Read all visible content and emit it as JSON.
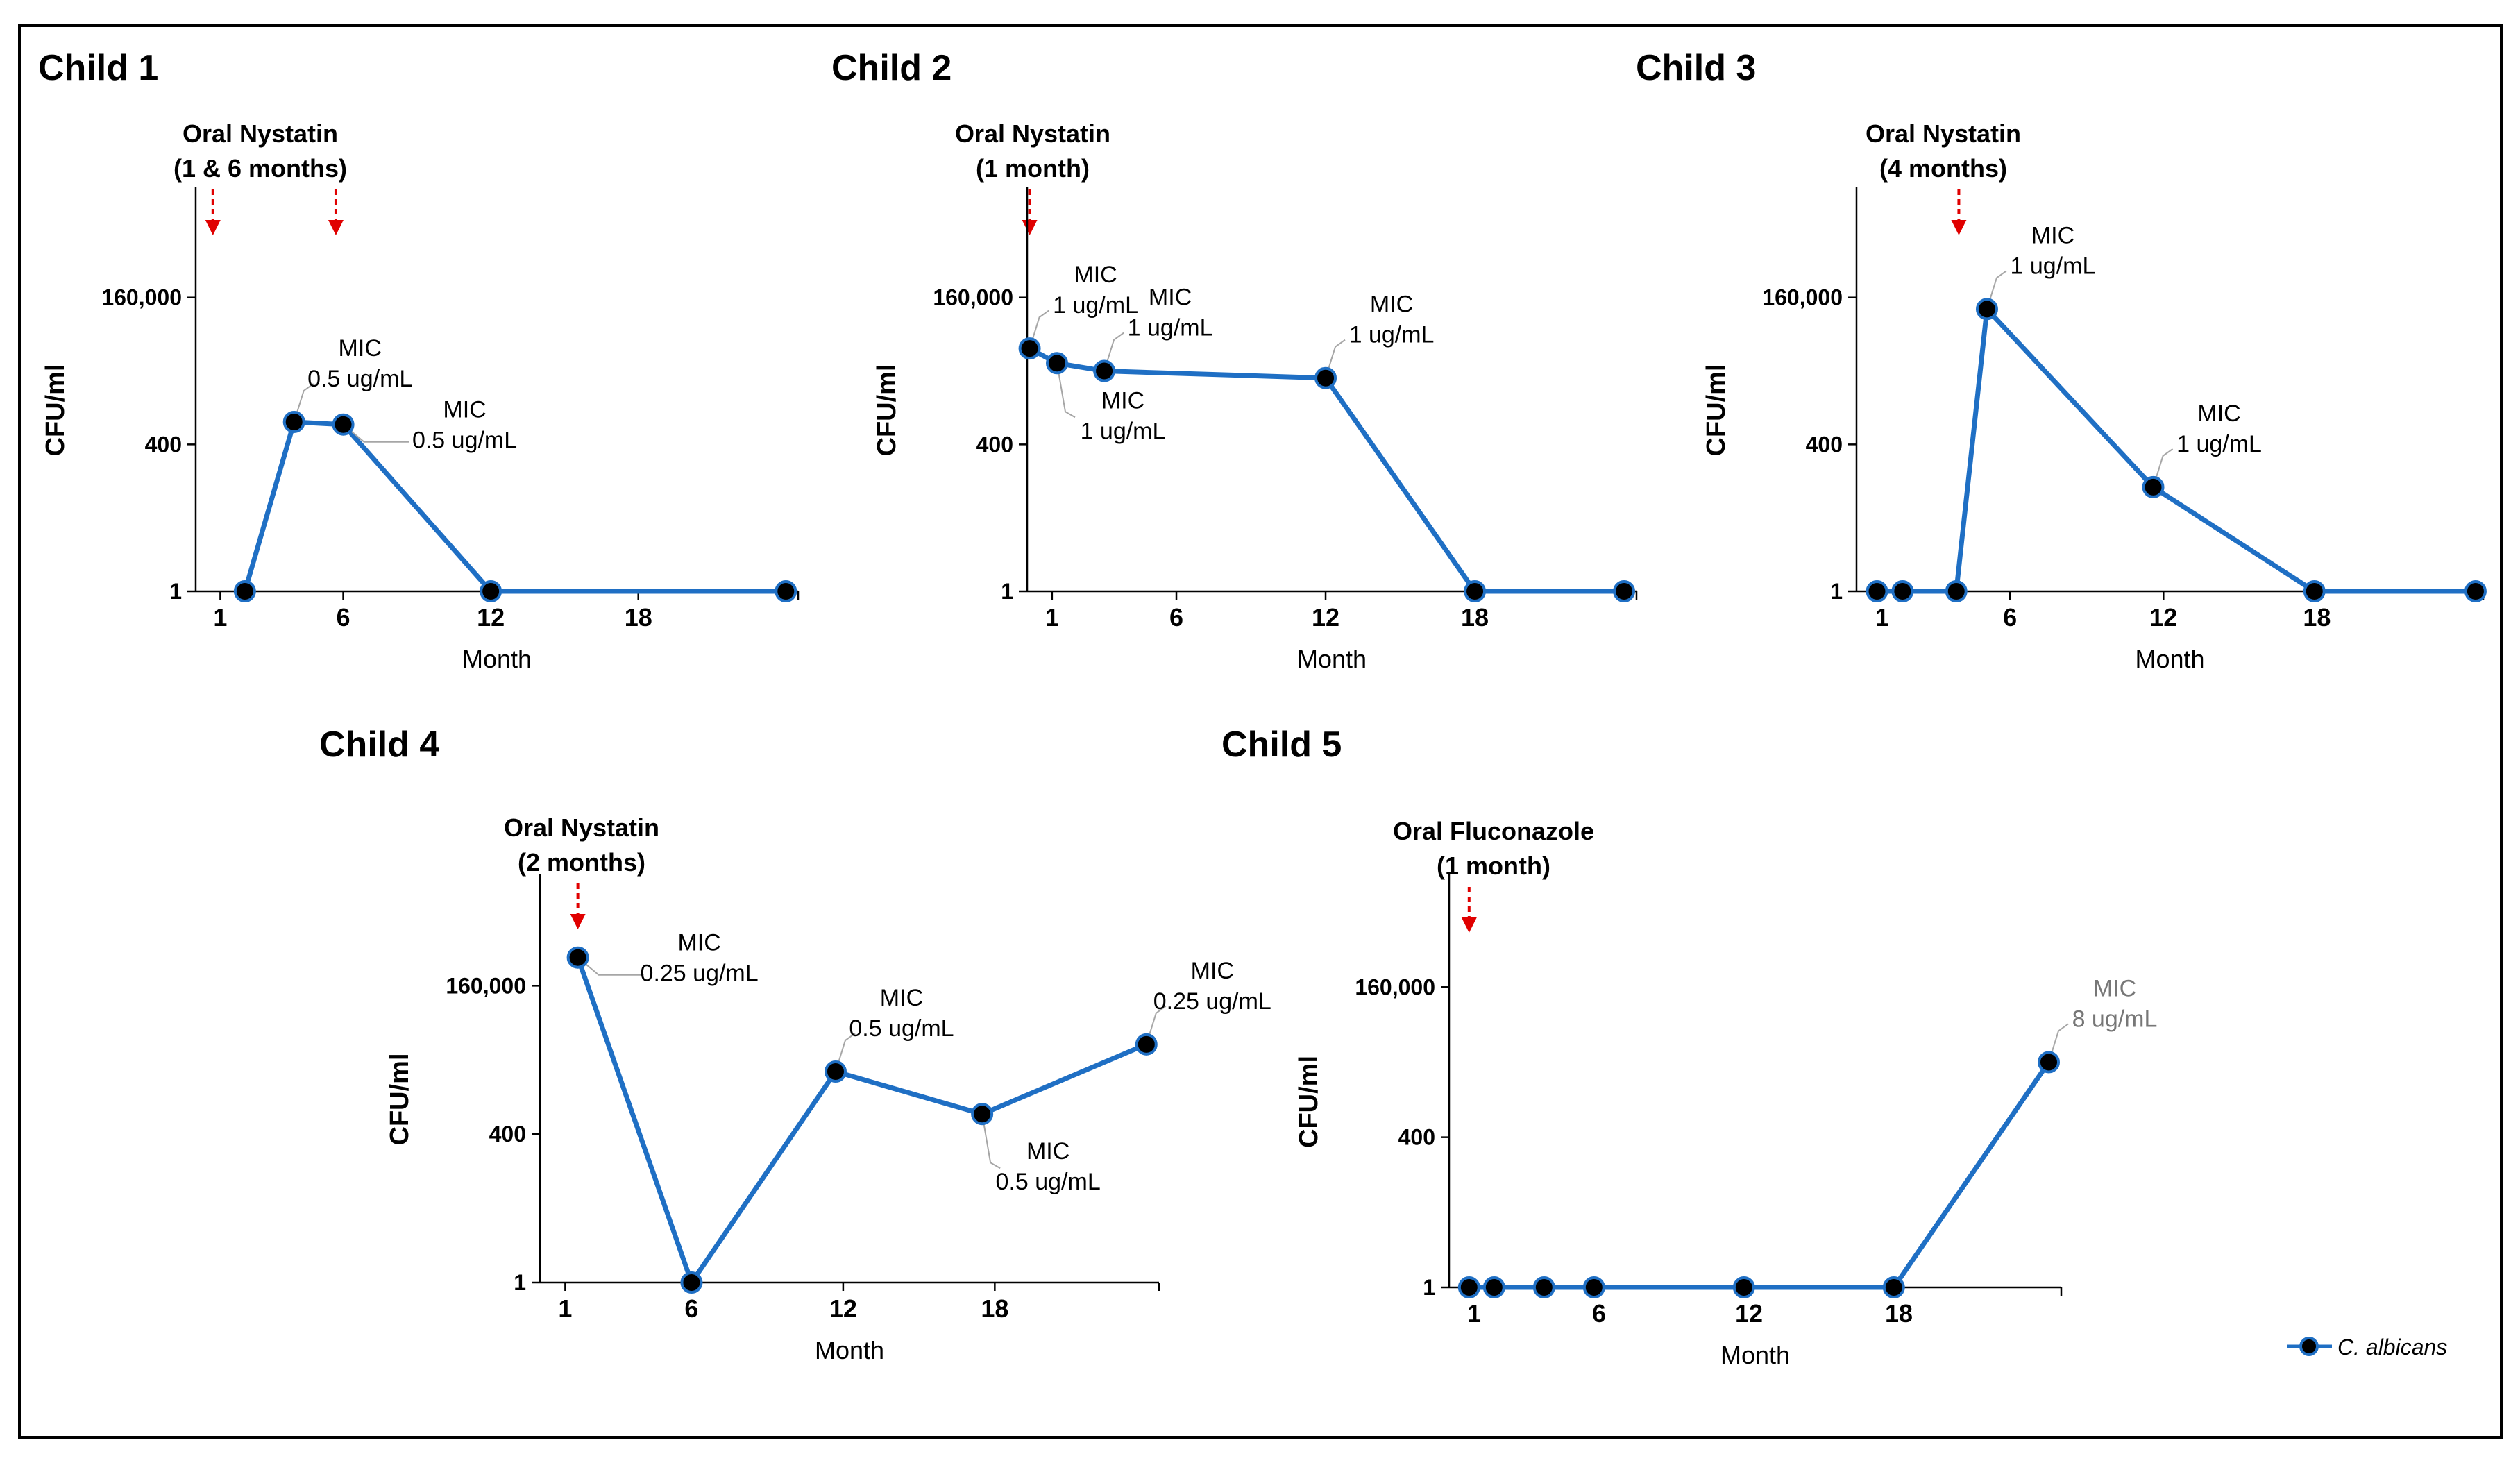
{
  "figure": {
    "legend": {
      "label": "C. albicans",
      "line_color": "#1f6fc4",
      "marker_color": "#000000"
    },
    "arrow_color": "#e00000"
  },
  "chart_data": [
    {
      "type": "line",
      "title": "Child 1",
      "xlabel": "Month",
      "ylabel": "CFU/ml",
      "y_scale": "log",
      "yticks": [
        1,
        400,
        160000
      ],
      "ytick_labels": [
        "1",
        "400",
        "160,000"
      ],
      "xticks": [
        1,
        6,
        12,
        18
      ],
      "xtick_labels": [
        "1",
        "6",
        "12",
        "18"
      ],
      "xlim": [
        0,
        24.5
      ],
      "ylim_exp": [
        0,
        2.75
      ],
      "treatment": {
        "label_line1": "Oral Nystatin",
        "label_line2": "(1 & 6 months)",
        "arrow_months": [
          0.7,
          5.7
        ]
      },
      "series": [
        {
          "name": "C. albicans",
          "x": [
            2,
            4,
            6,
            12,
            24
          ],
          "y": [
            1,
            1000,
            900,
            1,
            1
          ]
        }
      ],
      "annotations": [
        {
          "x": 4,
          "y": 1000,
          "line1": "MIC",
          "line2": "0.5 ug/mL",
          "side": "up"
        },
        {
          "x": 6,
          "y": 900,
          "line1": "MIC",
          "line2": "0.5 ug/mL",
          "side": "right"
        }
      ]
    },
    {
      "type": "line",
      "title": "Child 2",
      "xlabel": "Month",
      "ylabel": "CFU/ml",
      "y_scale": "log",
      "yticks": [
        1,
        400,
        160000
      ],
      "ytick_labels": [
        "1",
        "400",
        "160,000"
      ],
      "xticks": [
        1,
        6,
        12,
        18
      ],
      "xtick_labels": [
        "1",
        "6",
        "12",
        "18"
      ],
      "xlim": [
        0,
        24.5
      ],
      "ylim_exp": [
        0,
        2.75
      ],
      "treatment": {
        "label_line1": "Oral Nystatin",
        "label_line2": "(1 month)",
        "arrow_months": [
          0.1
        ]
      },
      "series": [
        {
          "name": "C. albicans",
          "x": [
            0.1,
            1.2,
            3.1,
            12.0,
            18.0,
            24.0
          ],
          "y": [
            20000,
            11000,
            8000,
            6000,
            1,
            1
          ]
        }
      ],
      "annotations": [
        {
          "x": 0.1,
          "y": 20000,
          "line1": "MIC",
          "line2": "1 ug/mL",
          "side": "up"
        },
        {
          "x": 1.2,
          "y": 11000,
          "line1": "MIC",
          "line2": "1 ug/mL",
          "side": "down"
        },
        {
          "x": 3.1,
          "y": 8000,
          "line1": "MIC",
          "line2": "1 ug/mL",
          "side": "up"
        },
        {
          "x": 12.0,
          "y": 6000,
          "line1": "MIC",
          "line2": "1 ug/mL",
          "side": "up"
        }
      ]
    },
    {
      "type": "line",
      "title": "Child 3",
      "xlabel": "Month",
      "ylabel": "CFU/ml",
      "y_scale": "log",
      "yticks": [
        1,
        400,
        160000
      ],
      "ytick_labels": [
        "1",
        "400",
        "160,000"
      ],
      "xticks": [
        1,
        6,
        12,
        18
      ],
      "xtick_labels": [
        "1",
        "6",
        "12",
        "18"
      ],
      "xlim": [
        0,
        24.5
      ],
      "ylim_exp": [
        0,
        2.75
      ],
      "treatment": {
        "label_line1": "Oral Nystatin",
        "label_line2": "(4 months)",
        "arrow_months": [
          4.0
        ]
      },
      "series": [
        {
          "name": "C. albicans",
          "x": [
            0.8,
            1.8,
            3.9,
            5.1,
            11.6,
            17.9,
            24.2
          ],
          "y": [
            1,
            1,
            1,
            100000,
            70,
            1,
            1
          ]
        }
      ],
      "annotations": [
        {
          "x": 5.1,
          "y": 100000,
          "line1": "MIC",
          "line2": "1 ug/mL",
          "side": "up"
        },
        {
          "x": 11.6,
          "y": 70,
          "line1": "MIC",
          "line2": "1 ug/mL",
          "side": "up"
        }
      ]
    },
    {
      "type": "line",
      "title": "Child 4",
      "xlabel": "Month",
      "ylabel": "CFU/ml",
      "y_scale": "log",
      "yticks": [
        1,
        400,
        160000
      ],
      "ytick_labels": [
        "1",
        "400",
        "160,000"
      ],
      "xticks": [
        1,
        6,
        12,
        18
      ],
      "xtick_labels": [
        "1",
        "6",
        "12",
        "18"
      ],
      "xlim": [
        0,
        24.5
      ],
      "ylim_exp": [
        0,
        2.75
      ],
      "treatment": {
        "label_line1": "Oral Nystatin",
        "label_line2": "(2 months)",
        "arrow_months": [
          1.5
        ]
      },
      "series": [
        {
          "name": "C. albicans",
          "x": [
            1.5,
            6.0,
            11.7,
            17.5,
            24.0
          ],
          "y": [
            500000,
            1,
            5000,
            900,
            15000
          ]
        }
      ],
      "annotations": [
        {
          "x": 1.5,
          "y": 500000,
          "line1": "MIC",
          "line2": "0.25 ug/mL",
          "side": "right"
        },
        {
          "x": 11.7,
          "y": 5000,
          "line1": "MIC",
          "line2": "0.5 ug/mL",
          "side": "up"
        },
        {
          "x": 17.5,
          "y": 900,
          "line1": "MIC",
          "line2": "0.5 ug/mL",
          "side": "down"
        },
        {
          "x": 24.0,
          "y": 15000,
          "line1": "MIC",
          "line2": "0.25 ug/mL",
          "side": "up"
        }
      ]
    },
    {
      "type": "line",
      "title": "Child 5",
      "xlabel": "Month",
      "ylabel": "CFU/ml",
      "y_scale": "log",
      "yticks": [
        1,
        400,
        160000
      ],
      "ytick_labels": [
        "1",
        "400",
        "160,000"
      ],
      "xticks": [
        1,
        6,
        12,
        18
      ],
      "xtick_labels": [
        "1",
        "6",
        "12",
        "18"
      ],
      "xlim": [
        0,
        24.5
      ],
      "ylim_exp": [
        0,
        2.75
      ],
      "treatment": {
        "label_line1": "Oral Fluconazole",
        "label_line2": "(1 month)",
        "arrow_months": [
          0.8
        ]
      },
      "series": [
        {
          "name": "C. albicans",
          "x": [
            0.8,
            1.8,
            3.8,
            5.8,
            11.8,
            17.8,
            24.0
          ],
          "y": [
            1,
            1,
            1,
            1,
            1,
            1,
            8000
          ]
        }
      ],
      "annotations": [
        {
          "x": 24.0,
          "y": 8000,
          "line1": "MIC",
          "line2": "8 ug/mL",
          "side": "up",
          "gray": true
        }
      ]
    }
  ]
}
